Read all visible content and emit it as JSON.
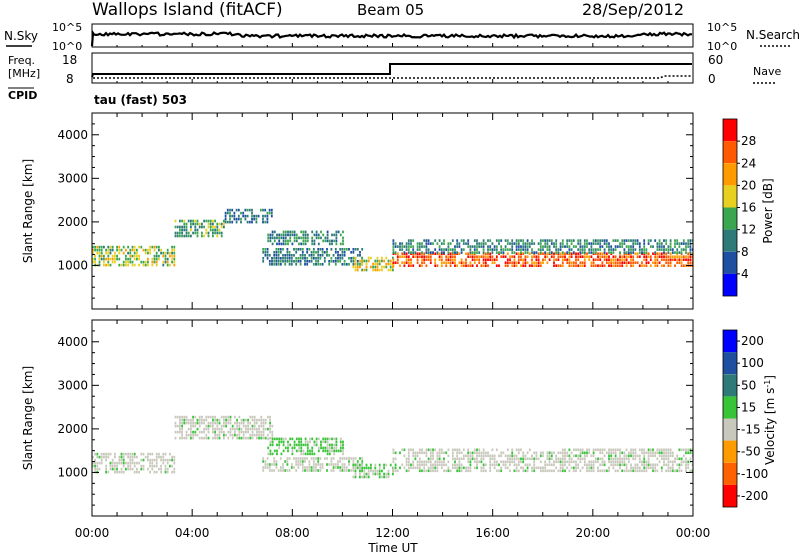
{
  "header": {
    "station": "Wallops Island (fitACF)",
    "beam": "Beam 05",
    "date": "28/Sep/2012"
  },
  "noise_panel": {
    "left_label": "N.Sky",
    "right_label": "N.Search",
    "ticks": [
      {
        "base": "10",
        "exp": "^5"
      },
      {
        "base": "10",
        "exp": "^0"
      }
    ]
  },
  "freq_panel": {
    "left_label_1": "Freq.",
    "left_label_2": "[MHz]",
    "left_ticks": [
      "18",
      "8"
    ],
    "right_label": "Nave",
    "right_ticks": [
      "60",
      "0"
    ],
    "cpid_label": "CPID",
    "cpid_text": "tau (fast) 503"
  },
  "colors": {
    "power": [
      "#0000ff",
      "#1f4fa0",
      "#2e7a78",
      "#3aa64f",
      "#e8d020",
      "#ff9a00",
      "#ff5a00",
      "#ff0000"
    ],
    "velocity": [
      "#0000ff",
      "#1f4fa0",
      "#2e7a78",
      "#37c437",
      "#c8c8bc",
      "#ff9a00",
      "#ff6000",
      "#ff0000"
    ]
  },
  "chart_data": [
    {
      "type": "heatmap",
      "name": "power",
      "ylabel": "Slant Range [km]",
      "yticks": [
        "1000",
        "2000",
        "3000",
        "4000"
      ],
      "ylim": [
        0,
        4500
      ],
      "xlim": [
        0,
        24
      ],
      "colorbar": {
        "label": "Power [dB]",
        "ticks": [
          "4",
          "8",
          "12",
          "16",
          "20",
          "24",
          "28"
        ],
        "range": [
          0,
          32
        ]
      },
      "bands": [
        {
          "x": [
            0.0,
            3.3
          ],
          "y": [
            1000,
            1450
          ],
          "level": 16
        },
        {
          "x": [
            3.3,
            5.3
          ],
          "y": [
            1700,
            2050
          ],
          "level": 13
        },
        {
          "x": [
            5.3,
            7.2
          ],
          "y": [
            2000,
            2300
          ],
          "level": 9
        },
        {
          "x": [
            6.8,
            10.8
          ],
          "y": [
            1050,
            1400
          ],
          "level": 10
        },
        {
          "x": [
            7.0,
            10.0
          ],
          "y": [
            1500,
            1800
          ],
          "level": 11
        },
        {
          "x": [
            10.4,
            12.0
          ],
          "y": [
            900,
            1200
          ],
          "level": 18
        },
        {
          "x": [
            12.0,
            24.0
          ],
          "y": [
            1000,
            1300
          ],
          "level": 26
        },
        {
          "x": [
            12.0,
            24.0
          ],
          "y": [
            1300,
            1600
          ],
          "level": 11
        }
      ]
    },
    {
      "type": "heatmap",
      "name": "velocity",
      "ylabel": "Slant Range [km]",
      "yticks": [
        "1000",
        "2000",
        "3000",
        "4000"
      ],
      "ylim": [
        0,
        4500
      ],
      "xlim": [
        0,
        24
      ],
      "xticks": [
        "00:00",
        "04:00",
        "08:00",
        "12:00",
        "16:00",
        "20:00",
        "00:00"
      ],
      "xlabel": "Time UT",
      "colorbar": {
        "label_main": "Velocity [m s",
        "label_exp": "-1",
        "label_end": "]",
        "ticks": [
          "200",
          "100",
          "50",
          "15",
          "-15",
          "-50",
          "-100",
          "-200"
        ]
      },
      "bands": [
        {
          "x": [
            0.0,
            3.3
          ],
          "y": [
            1000,
            1450
          ],
          "level": 0
        },
        {
          "x": [
            3.3,
            7.2
          ],
          "y": [
            1750,
            2300
          ],
          "level": 0
        },
        {
          "x": [
            6.8,
            10.8
          ],
          "y": [
            1050,
            1350
          ],
          "level": 0
        },
        {
          "x": [
            7.0,
            10.0
          ],
          "y": [
            1450,
            1800
          ],
          "level": 20
        },
        {
          "x": [
            10.4,
            12.0
          ],
          "y": [
            900,
            1200
          ],
          "level": 10
        },
        {
          "x": [
            12.0,
            24.0
          ],
          "y": [
            1050,
            1550
          ],
          "level": 0
        }
      ]
    }
  ]
}
